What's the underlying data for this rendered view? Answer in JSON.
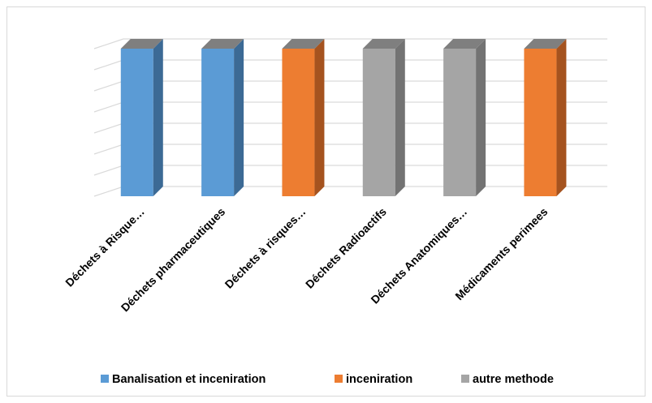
{
  "chart_data": {
    "type": "bar",
    "style": "3d-column",
    "categories": [
      "Déchets à Risque…",
      "Déchets pharmaceutiques",
      "Déchets à risques…",
      "Déchets Radioactifs",
      "Déchets Anatomiques…",
      "Médicaments perimees"
    ],
    "category_series": [
      0,
      0,
      1,
      2,
      2,
      1
    ],
    "values": [
      1,
      1,
      1,
      1,
      1,
      1
    ],
    "ylim": [
      0,
      1
    ],
    "grid": true,
    "legend_position": "bottom",
    "series": [
      {
        "name": "Banalisation et inceniration",
        "color": "#5b9bd5",
        "side_color": "#3c6a95"
      },
      {
        "name": "inceniration",
        "color": "#ed7d31",
        "side_color": "#a5531f"
      },
      {
        "name": "autre methode",
        "color": "#a5a5a5",
        "side_color": "#737373"
      }
    ],
    "top_color": "#7f7f7f",
    "grid_color": "#d9d9d9"
  }
}
